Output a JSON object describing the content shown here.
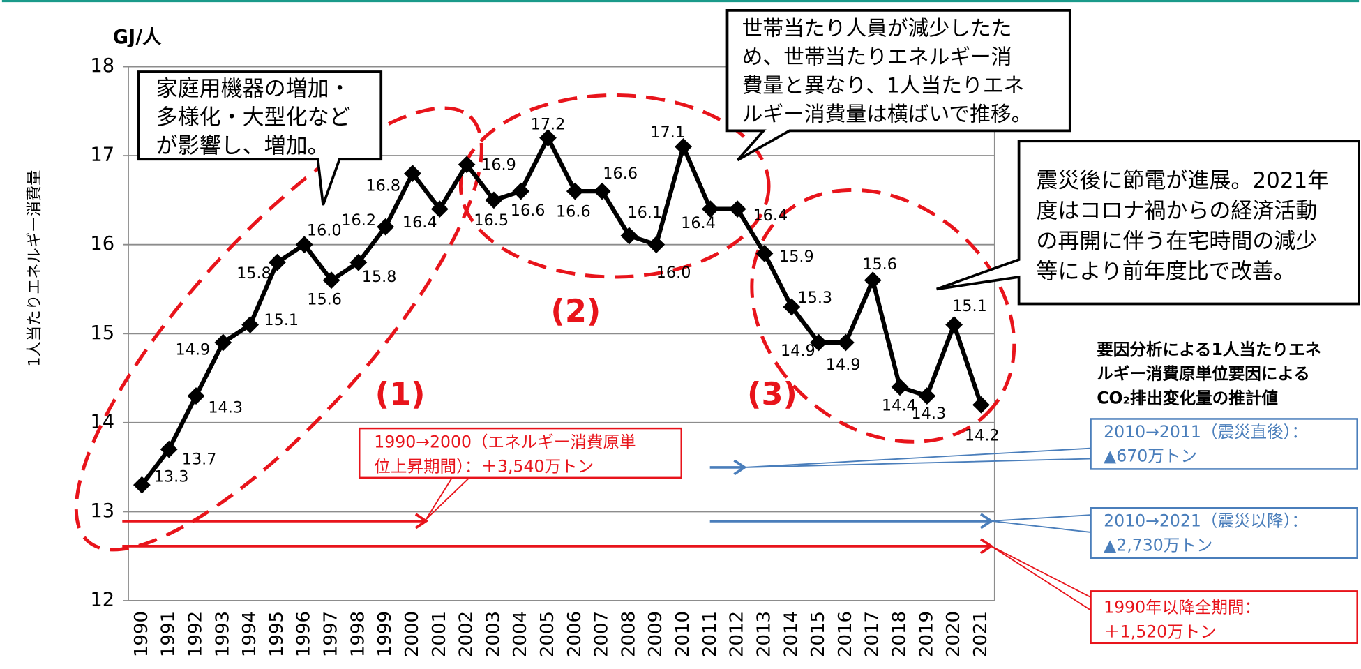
{
  "chart_data": {
    "type": "line",
    "y_label": "1人当たりエネルギー消費量",
    "y_unit": "GJ/人",
    "categories": [
      "1990",
      "1991",
      "1992",
      "1993",
      "1994",
      "1995",
      "1996",
      "1997",
      "1998",
      "1999",
      "2000",
      "2001",
      "2002",
      "2003",
      "2004",
      "2005",
      "2006",
      "2007",
      "2008",
      "2009",
      "2010",
      "2011",
      "2012",
      "2013",
      "2014",
      "2015",
      "2016",
      "2017",
      "2018",
      "2019",
      "2020",
      "2021"
    ],
    "values": [
      13.3,
      13.7,
      14.3,
      14.9,
      15.1,
      15.8,
      16.0,
      15.6,
      15.8,
      16.2,
      16.8,
      16.4,
      16.9,
      16.5,
      16.6,
      17.2,
      16.6,
      16.6,
      16.1,
      16.0,
      17.1,
      16.4,
      16.4,
      15.9,
      15.3,
      14.9,
      14.9,
      15.6,
      14.4,
      14.3,
      15.1,
      14.2
    ],
    "value_labels": [
      "13.3",
      "13.7",
      "14.3",
      "14.9",
      "15.1",
      "15.8",
      "16.0",
      "15.6",
      "15.8",
      "16.2",
      "16.8",
      "16.4",
      "16.9",
      "16.5",
      "16.6",
      "17.2",
      "16.6",
      "16.6",
      "16.1",
      "16.0",
      "17.1",
      "16.4",
      "16.4",
      "15.9",
      "15.3",
      "14.9",
      "14.9",
      "15.6",
      "14.4",
      "14.3",
      "15.1",
      "14.2"
    ],
    "color": "#000000",
    "ylim": [
      12,
      18
    ],
    "yticks": [
      12,
      13,
      14,
      15,
      16,
      17,
      18
    ],
    "grid": true,
    "annotations": {
      "callout_1": [
        "家庭用機器の増加・",
        "多様化・大型化など",
        "が影響し、増加。"
      ],
      "callout_2": [
        "世帯当たり人員が減少したた",
        "め、世帯当たりエネルギー消",
        "費量と異なり、1人当たりエネ",
        "ルギー消費量は横ばいで推移。"
      ],
      "callout_3": [
        "震災後に節電が進展。2021年",
        "度はコロナ禍からの経済活動",
        "の再開に伴う在宅時間の減少",
        "等により前年度比で改善。"
      ],
      "period_1": "(1)",
      "period_2": "(2)",
      "period_3": "(3)",
      "side_title": [
        "要因分析による1人当たりエネ",
        "ルギー消費原単位要因による",
        "CO₂排出変化量の推計値"
      ],
      "box_1990_2000": [
        "1990→2000（エネルギー消費原単",
        "位上昇期間）：＋3,540万トン"
      ],
      "box_2010_2011": [
        "2010→2011（震災直後）：",
        "▲670万トン"
      ],
      "box_2010_2021": [
        "2010→2021（震災以降）：",
        "▲2,730万トン"
      ],
      "box_1990_2021": [
        "1990年以降全期間：",
        "＋1,520万トン"
      ]
    }
  }
}
